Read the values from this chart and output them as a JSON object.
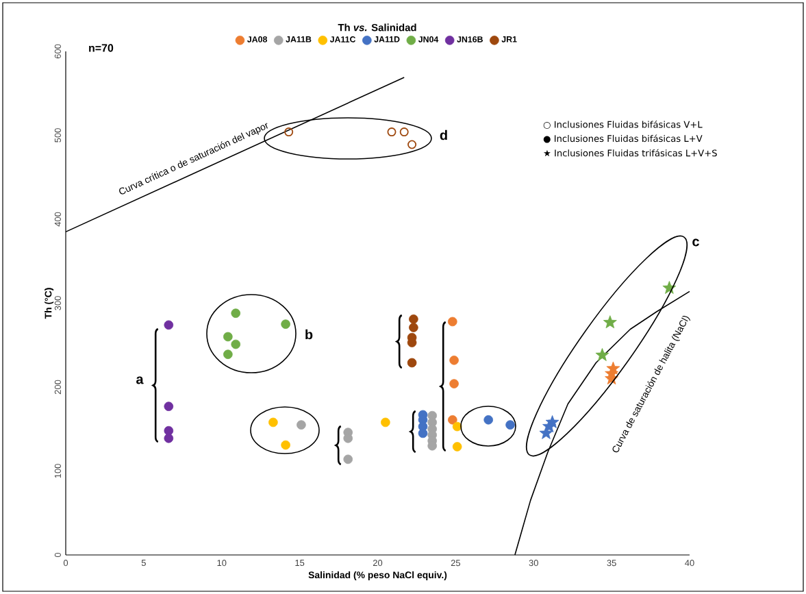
{
  "chart_data": {
    "type": "scatter",
    "title": "Th *vs.* Salinidad",
    "xlabel": "Salinidad (% peso NaCl equiv.)",
    "ylabel": "Th (°C)",
    "xlim": [
      0,
      40
    ],
    "ylim": [
      0,
      600
    ],
    "xticks": [
      0,
      5,
      10,
      15,
      20,
      25,
      30,
      35,
      40
    ],
    "yticks": [
      0,
      100,
      200,
      300,
      400,
      500,
      600
    ],
    "grid": false,
    "legend": "top",
    "marker": "circle",
    "series": [
      {
        "name": "JA08",
        "color": "#ed7d31",
        "x": [
          24.8,
          24.9,
          24.9,
          24.8
        ],
        "values": [
          278,
          232,
          204,
          161
        ]
      },
      {
        "name": "JA11B",
        "color": "#a5a5a5",
        "x": [
          15.1,
          18.1,
          18.1,
          18.1,
          23.5,
          23.5,
          23.5,
          23.5,
          23.5,
          23.5
        ],
        "values": [
          155,
          146,
          139,
          114,
          166,
          158,
          150,
          143,
          136,
          130
        ]
      },
      {
        "name": "JA11C",
        "color": "#ffc000",
        "x": [
          13.3,
          14.1,
          20.5,
          25.1,
          25.1
        ],
        "values": [
          158,
          131,
          158,
          153,
          129
        ]
      },
      {
        "name": "JA11D",
        "color": "#4472c4",
        "x": [
          22.9,
          22.9,
          22.9,
          22.9,
          27.1,
          28.5
        ],
        "values": [
          167,
          161,
          153,
          145,
          161,
          155
        ]
      },
      {
        "name": "JN04",
        "color": "#70ad47",
        "x": [
          10.9,
          14.1,
          10.4,
          10.9,
          10.4
        ],
        "values": [
          288,
          275,
          260,
          251,
          239
        ]
      },
      {
        "name": "JN16B",
        "color": "#7030a0",
        "x": [
          6.6,
          6.6,
          6.6,
          6.6
        ],
        "values": [
          274,
          177,
          148,
          139
        ]
      },
      {
        "name": "JR1",
        "color": "#9e480e",
        "x": [
          22.3,
          22.3,
          22.2,
          22.2,
          22.2
        ],
        "values": [
          281,
          271,
          259,
          253,
          229
        ]
      },
      {
        "color": "#9e480e",
        "marker": "circle-open",
        "x": [
          14.3,
          20.9,
          21.7,
          22.2
        ],
        "values": [
          504,
          504,
          504,
          489
        ]
      },
      {
        "color": "#ed7d31",
        "marker": "star",
        "x": [
          35.1,
          35.0,
          35.0
        ],
        "values": [
          222,
          216,
          210
        ]
      },
      {
        "color": "#4472c4",
        "marker": "star",
        "x": [
          31.0,
          31.2,
          30.8
        ],
        "values": [
          153,
          158,
          145
        ]
      },
      {
        "color": "#70ad47",
        "marker": "star",
        "x": [
          34.9,
          34.4,
          38.7
        ],
        "values": [
          277,
          238,
          318
        ]
      },
      {
        "type": "line",
        "color": "#000000",
        "marker": "none",
        "x": [
          0,
          21.7
        ],
        "values": [
          385,
          569
        ]
      },
      {
        "type": "line",
        "color": "#000000",
        "marker": "none",
        "x": [
          28.8,
          29.8,
          30.9,
          32.2,
          34.0,
          36.2,
          37.9,
          40
        ],
        "values": [
          0,
          65,
          122,
          180,
          229,
          269,
          290,
          314
        ]
      }
    ],
    "annotations": [
      "n=70",
      "○ Inclusiones Fluidas bifásicas V+L",
      "● Inclusiones Fluidas bifásicas L+V",
      "★ Inclusiones Fluidas trifásicas L+V+S",
      {
        "text": "Curva crítica o de saturación del vapor",
        "x": 8.5,
        "y": 460
      },
      {
        "text": "Curva de saturación de halita (NaCl)",
        "x": 34.0,
        "y": 229
      },
      "a",
      "b",
      "c",
      "d"
    ]
  }
}
